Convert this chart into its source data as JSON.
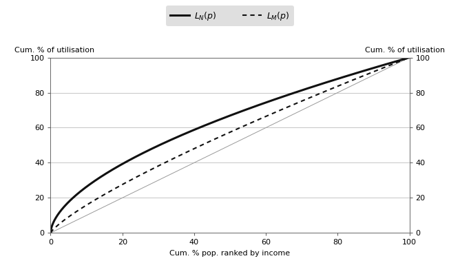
{
  "legend_label_solid": "$L_N(p)$",
  "legend_label_dashed": "$L_M(p)$",
  "ylabel_left": "Cum. % of utilisation",
  "ylabel_right": "Cum. % of utilisation",
  "xlabel": "Cum. % pop. ranked by income",
  "xlim": [
    0,
    100
  ],
  "ylim": [
    0,
    100
  ],
  "xticks": [
    0,
    20,
    40,
    60,
    80,
    100
  ],
  "yticks": [
    0,
    20,
    40,
    60,
    80,
    100
  ],
  "background_color": "#ffffff",
  "legend_bg_color": "#d8d8d8",
  "curve_color": "#111111",
  "diagonal_color": "#999999",
  "solid_linewidth": 2.2,
  "dashed_linewidth": 1.5,
  "diagonal_linewidth": 0.7,
  "alpha_solid": 0.58,
  "alpha_dashed": 0.8,
  "legend_fontsize": 9,
  "tick_fontsize": 8,
  "label_fontsize": 8
}
